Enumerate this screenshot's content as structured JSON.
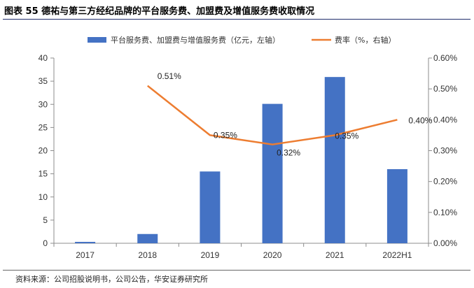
{
  "title": "图表 55  德祐与第三方经纪品牌的平台服务费、加盟费及增值服务费收取情况",
  "source": "资料来源：公司招股说明书，公司公告，华安证券研究所",
  "chart_data": {
    "type": "bar+line",
    "categories": [
      "2017",
      "2018",
      "2019",
      "2020",
      "2021",
      "2022H1"
    ],
    "series": [
      {
        "name": "平台服务费、加盟费与增值服务费（亿元，左轴）",
        "type": "bar",
        "axis": "left",
        "color": "#4472c4",
        "values": [
          0.3,
          2.0,
          15.5,
          30.1,
          35.9,
          16.0
        ]
      },
      {
        "name": "费率（%，右轴）",
        "type": "line",
        "axis": "right",
        "color": "#ed7d31",
        "values": [
          null,
          0.51,
          0.35,
          0.32,
          0.35,
          0.4
        ],
        "labels": [
          "",
          "0.51%",
          "0.35%",
          "0.32%",
          "0.35%",
          "0.40%"
        ]
      }
    ],
    "left_axis": {
      "ylim": [
        0,
        40
      ],
      "ticks": [
        "0",
        "5",
        "10",
        "15",
        "20",
        "25",
        "30",
        "35",
        "40"
      ]
    },
    "right_axis": {
      "ylim": [
        0,
        0.6
      ],
      "ticks": [
        "0.00%",
        "0.10%",
        "0.20%",
        "0.30%",
        "0.40%",
        "0.50%",
        "0.60%"
      ]
    },
    "legend_position": "top",
    "grid": false
  }
}
